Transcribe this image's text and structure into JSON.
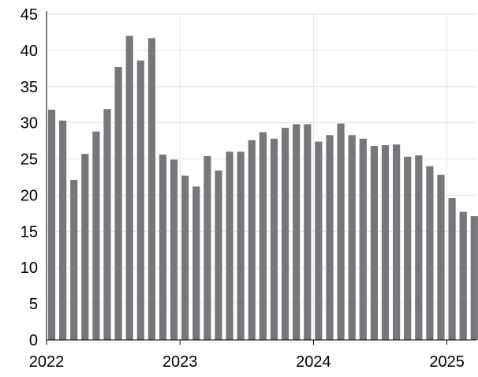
{
  "chart_data": {
    "type": "bar",
    "title": "",
    "xlabel": "",
    "ylabel": "",
    "ylim": [
      0,
      45
    ],
    "yticks": [
      0,
      5,
      10,
      15,
      20,
      25,
      30,
      35,
      40,
      45
    ],
    "xticks": [
      {
        "label": "2022",
        "at_index": 0
      },
      {
        "label": "2023",
        "at_index": 12
      },
      {
        "label": "2024",
        "at_index": 24
      },
      {
        "label": "2025",
        "at_index": 36
      }
    ],
    "grid": true,
    "bar_color": "#77777b",
    "categories": [
      "2022-01",
      "2022-02",
      "2022-03",
      "2022-04",
      "2022-05",
      "2022-06",
      "2022-07",
      "2022-08",
      "2022-09",
      "2022-10",
      "2022-11",
      "2022-12",
      "2023-01",
      "2023-02",
      "2023-03",
      "2023-04",
      "2023-05",
      "2023-06",
      "2023-07",
      "2023-08",
      "2023-09",
      "2023-10",
      "2023-11",
      "2023-12",
      "2024-01",
      "2024-02",
      "2024-03",
      "2024-04",
      "2024-05",
      "2024-06",
      "2024-07",
      "2024-08",
      "2024-09",
      "2024-10",
      "2024-11",
      "2024-12",
      "2025-01",
      "2025-02",
      "2025-03"
    ],
    "values": [
      31.8,
      30.3,
      22.1,
      25.7,
      28.8,
      31.9,
      37.7,
      42.0,
      38.6,
      41.7,
      25.6,
      24.9,
      22.7,
      21.2,
      25.4,
      23.4,
      26.0,
      26.0,
      27.6,
      28.7,
      27.8,
      29.3,
      29.8,
      29.8,
      27.4,
      28.3,
      29.9,
      28.3,
      27.8,
      26.8,
      26.9,
      27.0,
      25.3,
      25.5,
      24.0,
      22.8,
      19.6,
      17.7,
      17.1
    ]
  }
}
